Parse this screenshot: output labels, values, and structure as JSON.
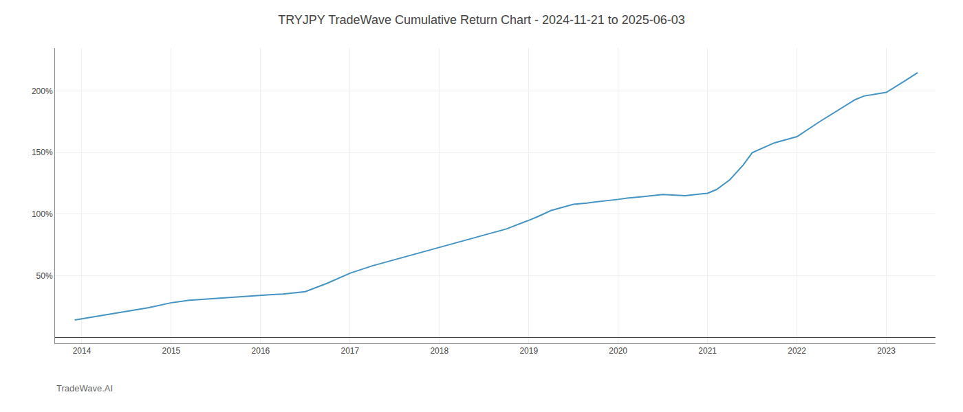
{
  "chart_data": {
    "type": "line",
    "title": "TRYJPY TradeWave Cumulative Return Chart - 2024-11-21 to 2025-06-03",
    "annotations": [
      "TradeWave.AI"
    ],
    "color": "#4393c4",
    "x": [
      2013.92,
      2014.0,
      2014.1,
      2014.25,
      2014.5,
      2014.75,
      2015.0,
      2015.2,
      2015.4,
      2015.6,
      2015.75,
      2016.0,
      2016.1,
      2016.25,
      2016.4,
      2016.5,
      2016.75,
      2017.0,
      2017.25,
      2017.5,
      2017.75,
      2018.0,
      2018.25,
      2018.5,
      2018.65,
      2018.75,
      2019.0,
      2019.1,
      2019.25,
      2019.4,
      2019.5,
      2019.65,
      2019.75,
      2020.0,
      2020.1,
      2020.25,
      2020.4,
      2020.5,
      2020.75,
      2021.0,
      2021.1,
      2021.25,
      2021.4,
      2021.5,
      2021.75,
      2022.0,
      2022.25,
      2022.5,
      2022.65,
      2022.75,
      2023.0,
      2023.2,
      2023.35
    ],
    "values": [
      14,
      15,
      16,
      18,
      21,
      24,
      28,
      30,
      31,
      32,
      33,
      34,
      34.5,
      35,
      36,
      37,
      44,
      52,
      58,
      63,
      68,
      73,
      78,
      83,
      86,
      88,
      95,
      98,
      103,
      106,
      108,
      109,
      110,
      112,
      113,
      114,
      115,
      116,
      115,
      117,
      120,
      128,
      140,
      150,
      158,
      163,
      175,
      186,
      193,
      196,
      199,
      208,
      215
    ],
    "xlim": [
      2013.7,
      2023.55
    ],
    "ylim": [
      -5,
      235
    ],
    "xticks": [
      2014,
      2015,
      2016,
      2017,
      2018,
      2019,
      2020,
      2021,
      2022,
      2023
    ],
    "yticks": [
      {
        "value": 50,
        "label": "50%"
      },
      {
        "value": 100,
        "label": "100%"
      },
      {
        "value": 150,
        "label": "150%"
      },
      {
        "value": 200,
        "label": "200%"
      }
    ],
    "grid": true
  }
}
